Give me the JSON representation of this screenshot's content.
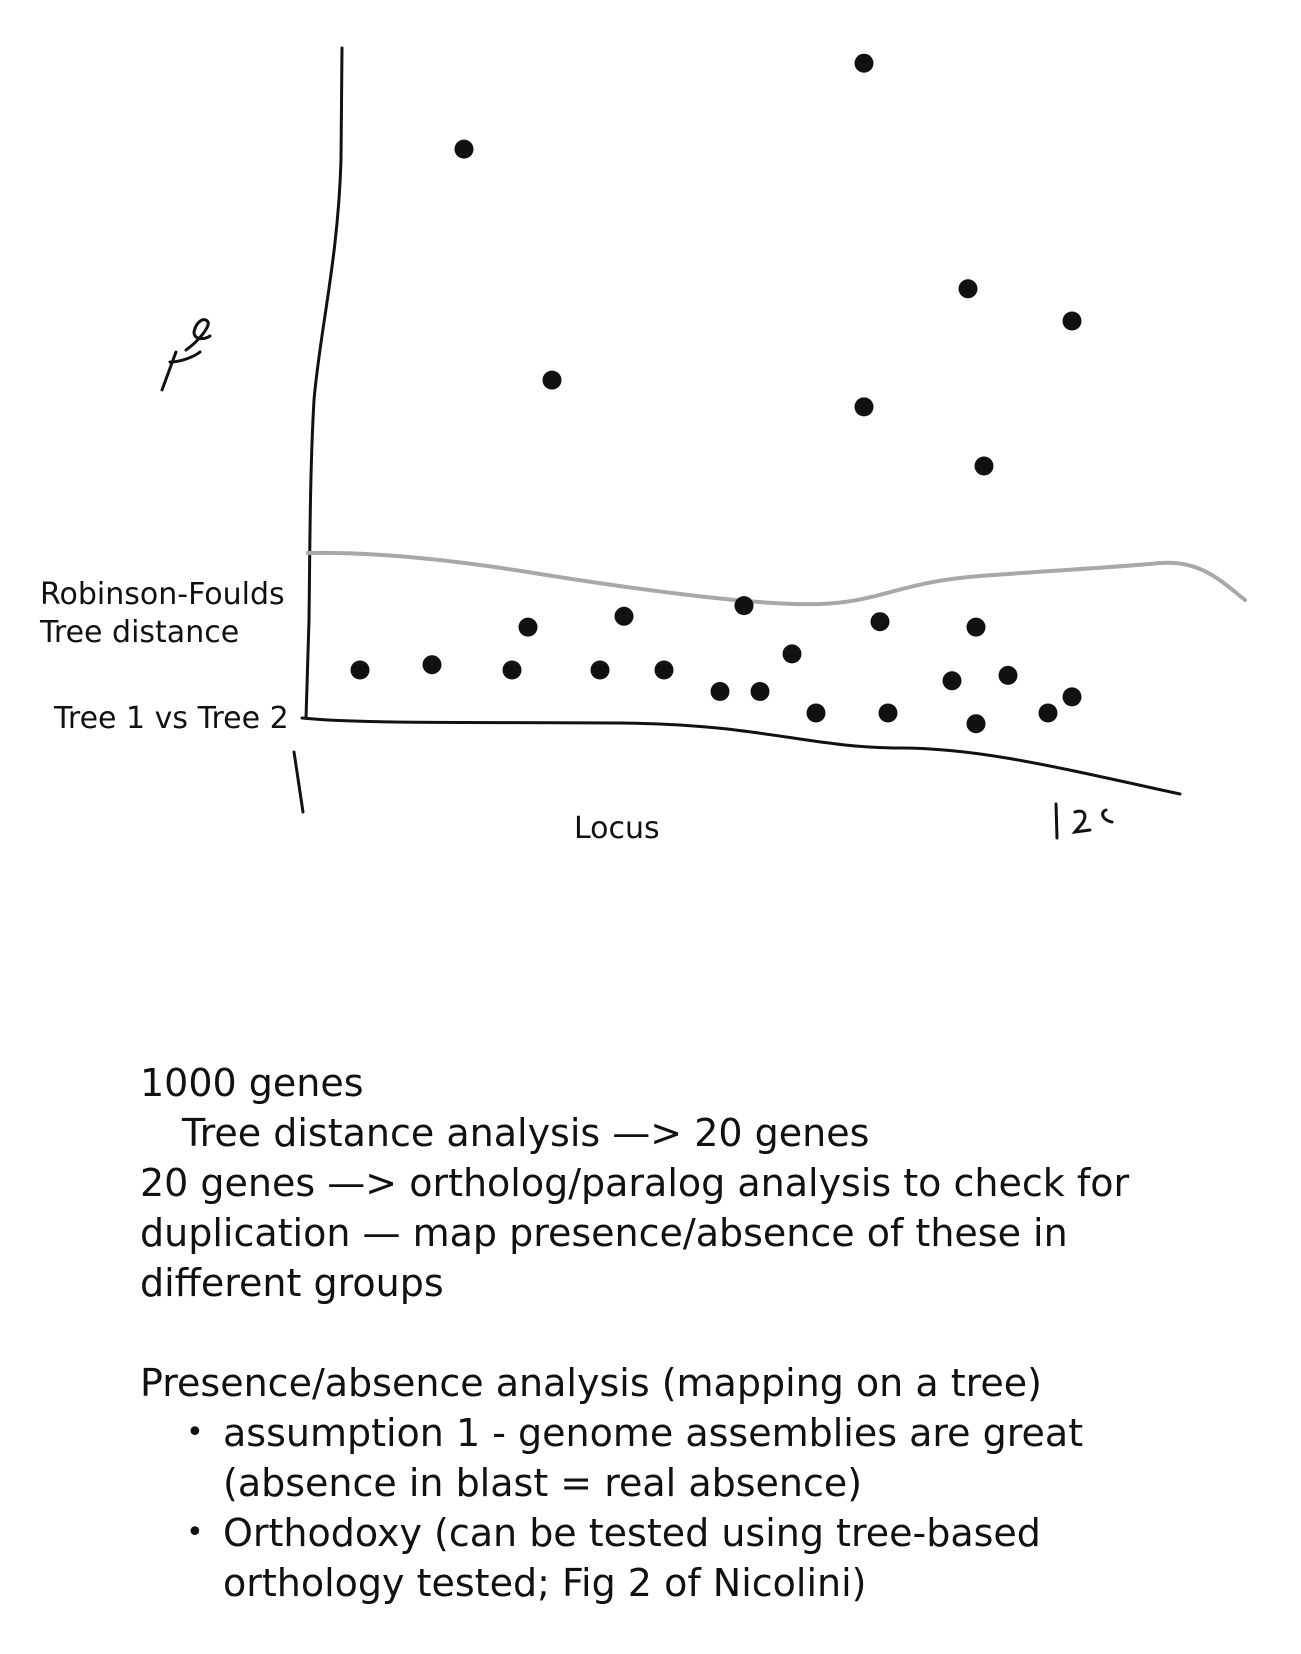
{
  "chart_data": {
    "type": "scatter",
    "ylabel": [
      "Robinson-Foulds",
      "Tree distance",
      "Tree 1 vs Tree 2"
    ],
    "xlabel": "Locus",
    "x_ticks": [
      "1",
      "1 2 0"
    ],
    "y_annotation": "T D",
    "points": [
      [
        0.05,
        0.08
      ],
      [
        0.14,
        0.09
      ],
      [
        0.24,
        0.08
      ],
      [
        0.26,
        0.16
      ],
      [
        0.35,
        0.08
      ],
      [
        0.38,
        0.18
      ],
      [
        0.43,
        0.08
      ],
      [
        0.5,
        0.04
      ],
      [
        0.53,
        0.2
      ],
      [
        0.55,
        0.04
      ],
      [
        0.59,
        0.11
      ],
      [
        0.62,
        0.0
      ],
      [
        0.7,
        0.17
      ],
      [
        0.71,
        0.0
      ],
      [
        0.79,
        0.06
      ],
      [
        0.82,
        0.16
      ],
      [
        0.82,
        -0.02
      ],
      [
        0.86,
        0.07
      ],
      [
        0.91,
        0.0
      ],
      [
        0.94,
        0.03
      ],
      [
        0.18,
        1.05
      ],
      [
        0.29,
        0.62
      ],
      [
        0.68,
        1.21
      ],
      [
        0.68,
        0.57
      ],
      [
        0.81,
        0.79
      ],
      [
        0.83,
        0.46
      ],
      [
        0.94,
        0.73
      ]
    ],
    "threshold_line": true
  },
  "notes": {
    "line1": "1000 genes",
    "line2": "Tree distance analysis —> 20 genes",
    "line3": "20 genes —> ortholog/paralog analysis to check for",
    "line4": "duplication — map presence/absence of these in",
    "line5": "different groups",
    "line6": "Presence/absence analysis (mapping on a tree)",
    "bullets": [
      {
        "l1": "assumption 1 - genome assemblies are great",
        "l2": "(absence in blast = real absence)"
      },
      {
        "l1": "Orthodoxy (can be tested using tree-based",
        "l2": "orthology tested; Fig 2 of Nicolini)"
      }
    ],
    "bullet_glyph": "•"
  }
}
